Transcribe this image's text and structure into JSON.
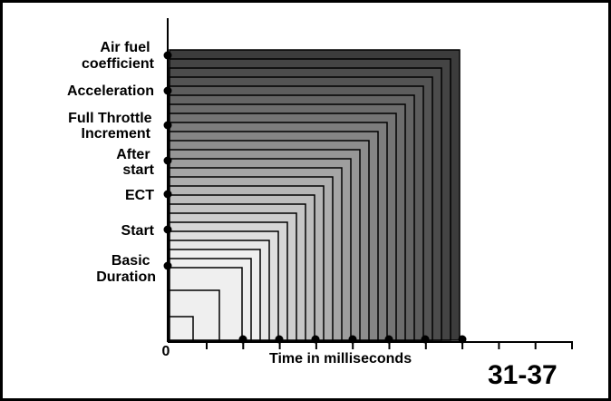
{
  "diagram": {
    "y_labels": [
      {
        "lines": [
          "Air fuel",
          "coefficient"
        ]
      },
      {
        "lines": [
          "Acceleration"
        ]
      },
      {
        "lines": [
          "Full Throttle",
          "Increment"
        ]
      },
      {
        "lines": [
          "After",
          "start"
        ]
      },
      {
        "lines": [
          "ECT"
        ]
      },
      {
        "lines": [
          "Start"
        ]
      },
      {
        "lines": [
          "Basic",
          "Duration"
        ]
      }
    ],
    "x_axis_zero": "0",
    "x_axis_title": "Time in milliseconds",
    "figure_number": "31-37",
    "shading": {
      "light": "#efefef",
      "dark": "#3c3c3c",
      "outline": "#000000"
    }
  }
}
